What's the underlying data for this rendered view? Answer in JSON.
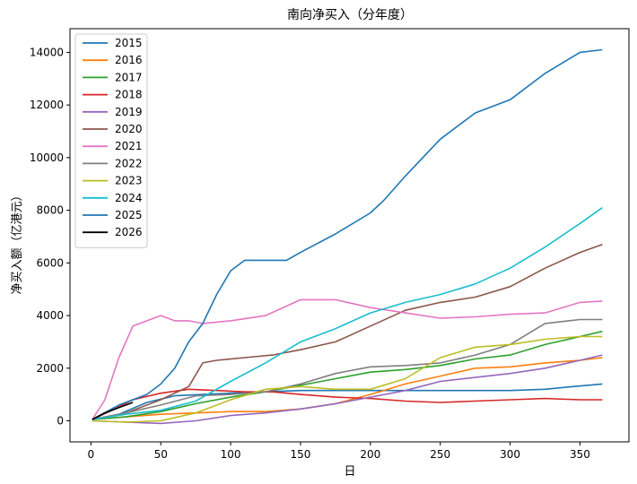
{
  "chart_data": {
    "type": "line",
    "title": "南向净买入（分年度）",
    "xlabel": "日",
    "ylabel": "净买入额（亿港元）",
    "xlim": [
      -15,
      385
    ],
    "ylim": [
      -800,
      14900
    ],
    "xticks": [
      0,
      50,
      100,
      150,
      200,
      250,
      300,
      350
    ],
    "yticks": [
      0,
      2000,
      4000,
      6000,
      8000,
      10000,
      12000,
      14000
    ],
    "grid": false,
    "legend_position": "top-left",
    "series": [
      {
        "name": "2015",
        "color": "#1f77b4",
        "x": [
          1,
          20,
          40,
          60,
          80,
          100,
          125,
          150,
          175,
          200,
          225,
          250,
          275,
          300,
          325,
          345,
          366
        ],
        "y": [
          50,
          250,
          700,
          950,
          1000,
          1050,
          1100,
          1150,
          1150,
          1150,
          1150,
          1150,
          1150,
          1150,
          1200,
          1300,
          1400
        ]
      },
      {
        "name": "2016",
        "color": "#ff7f0e",
        "x": [
          1,
          25,
          50,
          75,
          100,
          125,
          150,
          175,
          200,
          225,
          250,
          275,
          300,
          325,
          350,
          366
        ],
        "y": [
          50,
          150,
          250,
          300,
          350,
          350,
          450,
          650,
          1000,
          1400,
          1700,
          2000,
          2050,
          2200,
          2300,
          2400
        ]
      },
      {
        "name": "2017",
        "color": "#2ca02c",
        "x": [
          1,
          25,
          50,
          75,
          100,
          125,
          150,
          175,
          200,
          225,
          250,
          275,
          300,
          325,
          350,
          366
        ],
        "y": [
          50,
          150,
          350,
          650,
          900,
          1100,
          1350,
          1600,
          1850,
          1950,
          2100,
          2350,
          2500,
          2900,
          3200,
          3400
        ]
      },
      {
        "name": "2018",
        "color": "#d62728",
        "x": [
          1,
          15,
          30,
          50,
          70,
          90,
          110,
          130,
          150,
          175,
          200,
          225,
          250,
          275,
          300,
          325,
          350,
          366
        ],
        "y": [
          50,
          400,
          800,
          1050,
          1200,
          1150,
          1100,
          1100,
          1000,
          900,
          850,
          750,
          700,
          750,
          800,
          850,
          800,
          800
        ]
      },
      {
        "name": "2019",
        "color": "#9467bd",
        "x": [
          1,
          25,
          50,
          75,
          100,
          125,
          150,
          175,
          200,
          225,
          250,
          275,
          300,
          325,
          350,
          366
        ],
        "y": [
          0,
          -50,
          -100,
          0,
          200,
          300,
          450,
          650,
          900,
          1150,
          1500,
          1650,
          1800,
          2000,
          2300,
          2500
        ]
      },
      {
        "name": "2020",
        "color": "#8c564b",
        "x": [
          1,
          25,
          50,
          70,
          80,
          90,
          110,
          130,
          150,
          175,
          200,
          225,
          250,
          275,
          300,
          325,
          350,
          366
        ],
        "y": [
          50,
          300,
          800,
          1300,
          2200,
          2300,
          2400,
          2500,
          2700,
          3000,
          3600,
          4200,
          4500,
          4700,
          5100,
          5800,
          6400,
          6700
        ]
      },
      {
        "name": "2021",
        "color": "#e377c2",
        "x": [
          1,
          10,
          20,
          30,
          40,
          50,
          60,
          70,
          80,
          100,
          125,
          150,
          175,
          200,
          225,
          250,
          275,
          300,
          325,
          350,
          366
        ],
        "y": [
          50,
          800,
          2400,
          3600,
          3800,
          4000,
          3800,
          3800,
          3700,
          3800,
          4000,
          4600,
          4600,
          4300,
          4100,
          3900,
          3950,
          4050,
          4100,
          4500,
          4550
        ]
      },
      {
        "name": "2022",
        "color": "#7f7f7f",
        "x": [
          1,
          25,
          50,
          75,
          100,
          125,
          150,
          175,
          200,
          225,
          250,
          275,
          300,
          325,
          350,
          366
        ],
        "y": [
          50,
          300,
          600,
          950,
          1000,
          1100,
          1400,
          1800,
          2050,
          2100,
          2200,
          2500,
          2900,
          3700,
          3850,
          3850
        ]
      },
      {
        "name": "2023",
        "color": "#bcbd22",
        "x": [
          1,
          25,
          50,
          75,
          100,
          125,
          150,
          175,
          200,
          225,
          250,
          275,
          300,
          325,
          350,
          366
        ],
        "y": [
          0,
          -50,
          0,
          300,
          800,
          1200,
          1300,
          1200,
          1200,
          1600,
          2400,
          2800,
          2900,
          3100,
          3200,
          3200
        ]
      },
      {
        "name": "2024",
        "color": "#17becf",
        "x": [
          1,
          25,
          50,
          75,
          100,
          125,
          150,
          175,
          200,
          225,
          250,
          275,
          300,
          325,
          350,
          366
        ],
        "y": [
          50,
          250,
          400,
          750,
          1500,
          2200,
          3000,
          3500,
          4100,
          4500,
          4800,
          5200,
          5800,
          6600,
          7500,
          8100
        ]
      },
      {
        "name": "2025",
        "color": "#1f77b4",
        "x": [
          1,
          20,
          40,
          50,
          60,
          70,
          80,
          90,
          100,
          110,
          125,
          140,
          150,
          175,
          200,
          210,
          225,
          250,
          275,
          300,
          325,
          350,
          366
        ],
        "y": [
          50,
          600,
          1000,
          1400,
          2000,
          3000,
          3700,
          4800,
          5700,
          6100,
          6100,
          6100,
          6400,
          7100,
          7900,
          8400,
          9300,
          10700,
          11700,
          12200,
          13200,
          14000,
          14100
        ]
      },
      {
        "name": "2026",
        "color": "#000000",
        "x": [
          1,
          10,
          20,
          30
        ],
        "y": [
          50,
          300,
          500,
          700
        ]
      }
    ]
  }
}
